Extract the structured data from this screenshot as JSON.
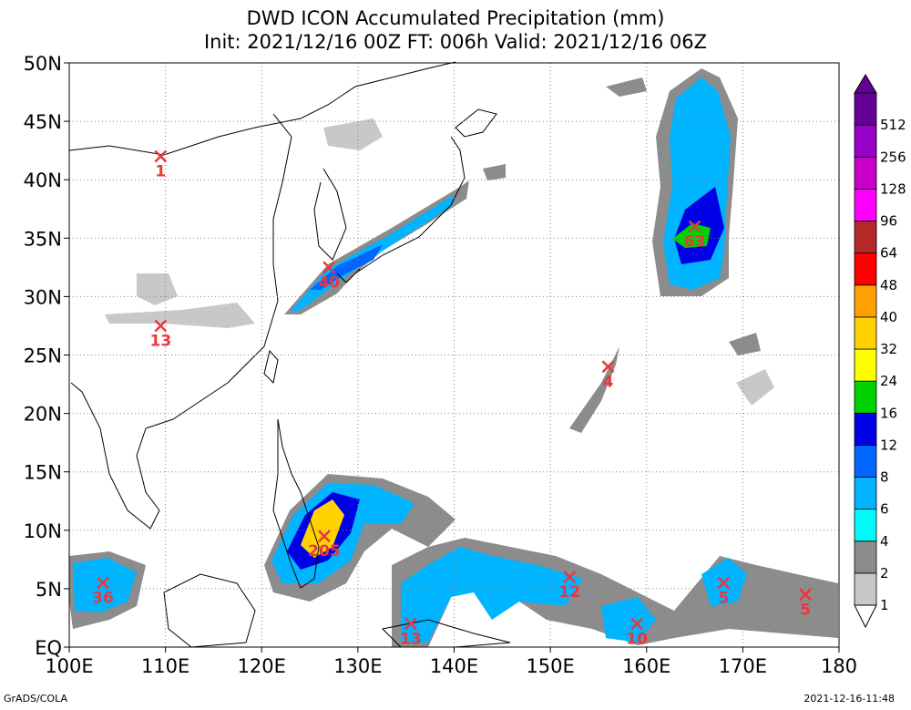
{
  "title": {
    "line1": "DWD ICON Accumulated Precipitation (mm)",
    "line2": "Init: 2021/12/16 00Z  FT: 006h  Valid: 2021/12/16 06Z"
  },
  "map": {
    "lon_range": [
      100,
      180
    ],
    "lat_range": [
      0,
      50
    ],
    "lon_ticks": [
      "100E",
      "110E",
      "120E",
      "130E",
      "140E",
      "150E",
      "160E",
      "170E",
      "180"
    ],
    "lat_ticks": [
      "EQ",
      "5N",
      "10N",
      "15N",
      "20N",
      "25N",
      "30N",
      "35N",
      "40N",
      "45N",
      "50N"
    ],
    "gridlines": "dotted"
  },
  "colorbar": {
    "levels": [
      "1",
      "2",
      "4",
      "6",
      "8",
      "12",
      "16",
      "24",
      "32",
      "40",
      "48",
      "64",
      "96",
      "128",
      "256",
      "512"
    ],
    "colors": [
      "#c8c8c8",
      "#8c8c8c",
      "#00fafa",
      "#00b4ff",
      "#0066ff",
      "#0000e6",
      "#00d200",
      "#ffff00",
      "#ffd200",
      "#ffa000",
      "#ff0000",
      "#b42828",
      "#ff00ff",
      "#c800c8",
      "#9600c8",
      "#640096"
    ]
  },
  "markers": [
    {
      "label": "1",
      "lon": 109.5,
      "lat": 42
    },
    {
      "label": "13",
      "lon": 109.5,
      "lat": 27.5
    },
    {
      "label": "40",
      "lon": 127,
      "lat": 32.5
    },
    {
      "label": "63",
      "lon": 165,
      "lat": 36
    },
    {
      "label": "4",
      "lon": 156,
      "lat": 24
    },
    {
      "label": "205",
      "lon": 126.5,
      "lat": 9.5
    },
    {
      "label": "36",
      "lon": 103.5,
      "lat": 5.5
    },
    {
      "label": "12",
      "lon": 152,
      "lat": 6
    },
    {
      "label": "5",
      "lon": 168,
      "lat": 5.5
    },
    {
      "label": "5",
      "lon": 176.5,
      "lat": 4.5
    },
    {
      "label": "10",
      "lon": 159,
      "lat": 2
    },
    {
      "label": "13",
      "lon": 135.5,
      "lat": 2
    }
  ],
  "footer": {
    "left": "GrADS/COLA",
    "right": "2021-12-16-11:48"
  }
}
